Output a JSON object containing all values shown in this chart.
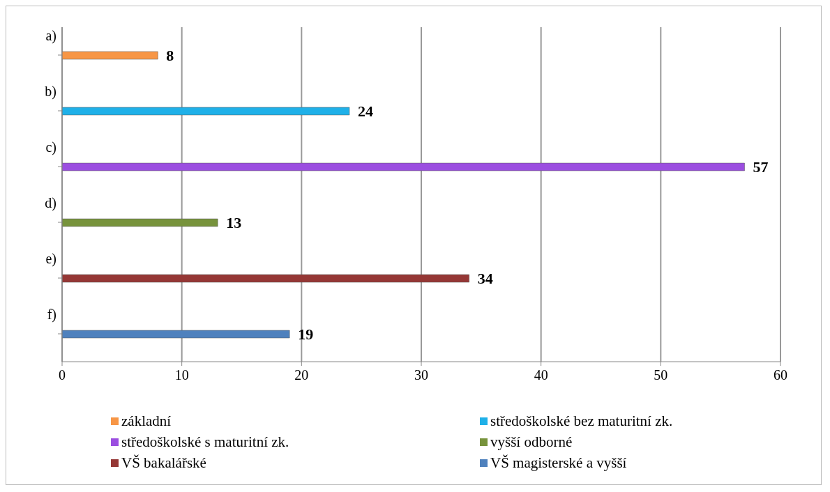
{
  "chart_data": {
    "type": "bar",
    "orientation": "horizontal",
    "categories": [
      "a)",
      "b)",
      "c)",
      "d)",
      "e)",
      "f)"
    ],
    "series": [
      {
        "name": "základní",
        "color": "#f79646",
        "values": [
          8,
          null,
          null,
          null,
          null,
          null
        ]
      },
      {
        "name": "středoškolské bez maturitní zk.",
        "color": "#1fb0e8",
        "values": [
          null,
          24,
          null,
          null,
          null,
          null
        ]
      },
      {
        "name": "středoškolské s maturitní zk.",
        "color": "#9b4ee0",
        "values": [
          null,
          null,
          57,
          null,
          null,
          null
        ]
      },
      {
        "name": "vyšší odborné",
        "color": "#77933c",
        "values": [
          null,
          null,
          null,
          13,
          null,
          null
        ]
      },
      {
        "name": "VŠ bakalářské",
        "color": "#953735",
        "values": [
          null,
          null,
          null,
          null,
          34,
          null
        ]
      },
      {
        "name": "VŠ magisterské a vyšší",
        "color": "#4f81bd",
        "values": [
          null,
          null,
          null,
          null,
          null,
          19
        ]
      }
    ],
    "xlim": [
      0,
      60
    ],
    "xticks": [
      0,
      10,
      20,
      30,
      40,
      50,
      60
    ],
    "grid": "x",
    "data_labels": true,
    "legend": "bottom"
  }
}
